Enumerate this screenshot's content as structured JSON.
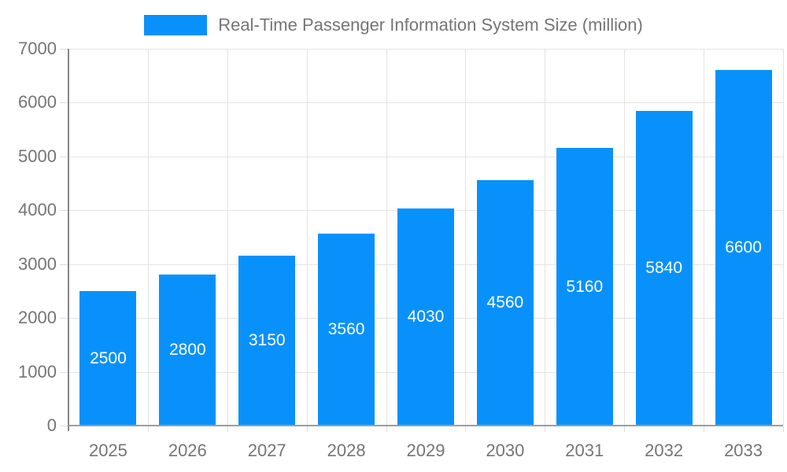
{
  "chart_data": {
    "type": "bar",
    "title": "Real-Time Passenger Information System Size (million)",
    "categories": [
      "2025",
      "2026",
      "2027",
      "2028",
      "2029",
      "2030",
      "2031",
      "2032",
      "2033"
    ],
    "series": [
      {
        "name": "Real-Time Passenger Information System Size (million)",
        "values": [
          2500,
          2800,
          3150,
          3560,
          4030,
          4560,
          5160,
          5840,
          6600
        ]
      }
    ],
    "xlabel": "",
    "ylabel": "",
    "ylim": [
      0,
      7000
    ],
    "yticks": [
      0,
      1000,
      2000,
      3000,
      4000,
      5000,
      6000,
      7000
    ],
    "grid": true,
    "legend_position": "top",
    "colors": {
      "bar": "#0991fb",
      "bar_value_label": "#ffffff",
      "axis_text": "#757575",
      "gridline": "#e3e3e3",
      "axis_line": "#888888",
      "background": "#ffffff"
    }
  }
}
